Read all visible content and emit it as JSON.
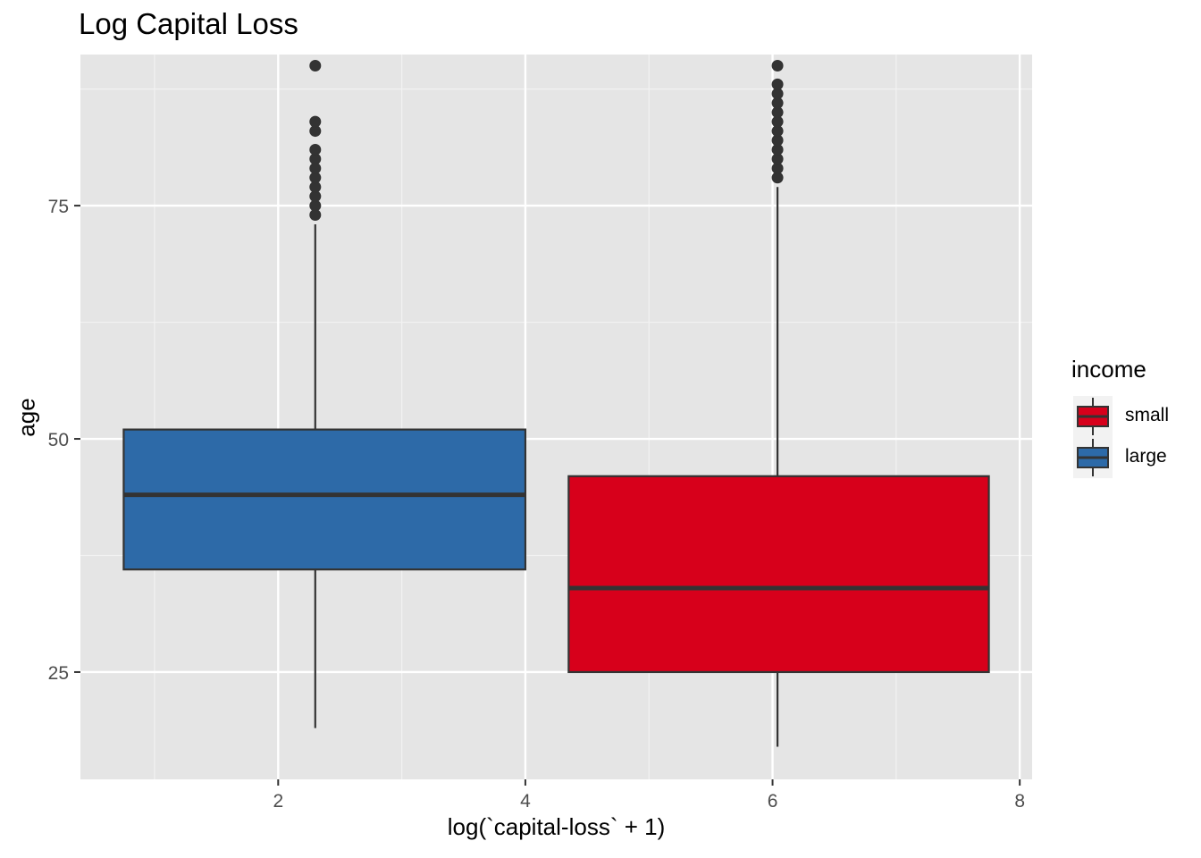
{
  "chart_data": {
    "type": "boxplot",
    "title": "Log Capital Loss",
    "xlabel": "log(`capital-loss` + 1)",
    "ylabel": "age",
    "xlim": [
      0.4,
      8.1
    ],
    "ylim": [
      13.5,
      91.2
    ],
    "x_ticks": [
      2,
      4,
      6,
      8
    ],
    "y_ticks": [
      25,
      50,
      75
    ],
    "grid": true,
    "legend": {
      "title": "income",
      "position": "right",
      "entries": [
        {
          "label": "small",
          "color": "#D7001B"
        },
        {
          "label": "large",
          "color": "#2D6AA8"
        }
      ]
    },
    "boxes": [
      {
        "group": "large",
        "color": "#2D6AA8",
        "x": 2.3,
        "x_range": [
          0.75,
          4.0
        ],
        "q1": 36,
        "median": 44,
        "q3": 51,
        "whisker_low": 19,
        "whisker_high": 73,
        "outliers": [
          74,
          75,
          76,
          77,
          78,
          79,
          80,
          81,
          83,
          84,
          90
        ]
      },
      {
        "group": "small",
        "color": "#D7001B",
        "x": 6.04,
        "x_range": [
          4.35,
          7.75
        ],
        "q1": 25,
        "median": 34,
        "q3": 46,
        "whisker_low": 17,
        "whisker_high": 77,
        "outliers": [
          78,
          79,
          80,
          81,
          82,
          83,
          84,
          85,
          86,
          87,
          88,
          90
        ]
      }
    ]
  }
}
